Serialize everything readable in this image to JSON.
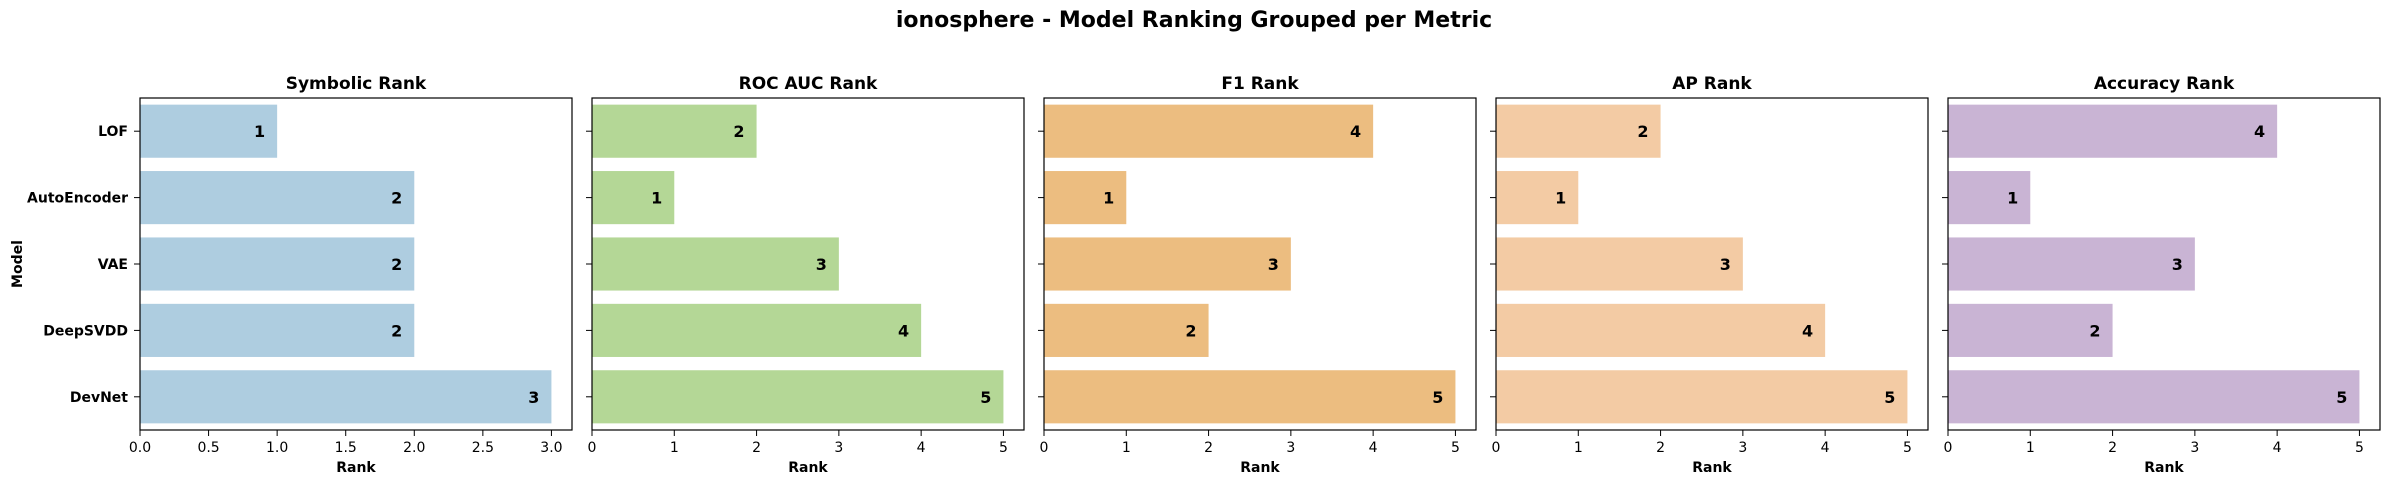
{
  "figure_title": "ionosphere - Model Ranking Grouped per Metric",
  "chart_data": [
    {
      "type": "bar",
      "orientation": "horizontal",
      "title": "Symbolic Rank",
      "xlabel": "Rank",
      "ylabel": "Model",
      "categories": [
        "LOF",
        "AutoEncoder",
        "VAE",
        "DeepSVDD",
        "DevNet"
      ],
      "values": [
        1,
        2,
        2,
        2,
        3
      ],
      "xlim": [
        0,
        3.15
      ],
      "xticks": [
        "0.0",
        "0.5",
        "1.0",
        "1.5",
        "2.0",
        "2.5",
        "3.0"
      ],
      "color": "#aecde0"
    },
    {
      "type": "bar",
      "orientation": "horizontal",
      "title": "ROC AUC Rank",
      "xlabel": "Rank",
      "ylabel": "",
      "categories": [
        "LOF",
        "AutoEncoder",
        "VAE",
        "DeepSVDD",
        "DevNet"
      ],
      "values": [
        2,
        1,
        3,
        4,
        5
      ],
      "xlim": [
        0,
        5.25
      ],
      "xticks": [
        "0",
        "1",
        "2",
        "3",
        "4",
        "5"
      ],
      "color": "#b4d796"
    },
    {
      "type": "bar",
      "orientation": "horizontal",
      "title": "F1 Rank",
      "xlabel": "Rank",
      "ylabel": "",
      "categories": [
        "LOF",
        "AutoEncoder",
        "VAE",
        "DeepSVDD",
        "DevNet"
      ],
      "values": [
        4,
        1,
        3,
        2,
        5
      ],
      "xlim": [
        0,
        5.25
      ],
      "xticks": [
        "0",
        "1",
        "2",
        "3",
        "4",
        "5"
      ],
      "color": "#ecbd80"
    },
    {
      "type": "bar",
      "orientation": "horizontal",
      "title": "AP Rank",
      "xlabel": "Rank",
      "ylabel": "",
      "categories": [
        "LOF",
        "AutoEncoder",
        "VAE",
        "DeepSVDD",
        "DevNet"
      ],
      "values": [
        2,
        1,
        3,
        4,
        5
      ],
      "xlim": [
        0,
        5.25
      ],
      "xticks": [
        "0",
        "1",
        "2",
        "3",
        "4",
        "5"
      ],
      "color": "#f3cba4"
    },
    {
      "type": "bar",
      "orientation": "horizontal",
      "title": "Accuracy Rank",
      "xlabel": "Rank",
      "ylabel": "",
      "categories": [
        "LOF",
        "AutoEncoder",
        "VAE",
        "DeepSVDD",
        "DevNet"
      ],
      "values": [
        4,
        1,
        3,
        2,
        5
      ],
      "xlim": [
        0,
        5.25
      ],
      "xticks": [
        "0",
        "1",
        "2",
        "3",
        "4",
        "5"
      ],
      "color": "#c9b4d4"
    }
  ]
}
